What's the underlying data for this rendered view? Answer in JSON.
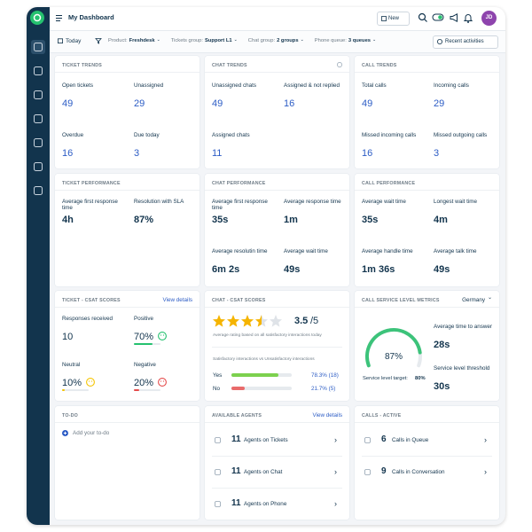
{
  "header": {
    "title": "My Dashboard",
    "new_button": "New",
    "avatar": "JD"
  },
  "filters": {
    "today": "Today",
    "product_label": "Product:",
    "product": "Freshdesk",
    "tickets_group_label": "Tickets group:",
    "tickets_group": "Support L1",
    "chat_group_label": "Chat group:",
    "chat_group": "2 groups",
    "phone_queue_label": "Phone queue:",
    "phone_queue": "3 queues",
    "recent": "Recent activities"
  },
  "cards": [
    {
      "title": "TICKET TRENDS",
      "metrics": [
        {
          "label": "Open tickets",
          "value": 49
        },
        {
          "label": "Unassigned",
          "value": 29
        },
        {
          "label": "Overdue",
          "value": 16
        },
        {
          "label": "Due today",
          "value": 3
        }
      ]
    },
    {
      "title": "CHAT TRENDS",
      "metrics": [
        {
          "label": "Unassigned chats",
          "value": 49
        },
        {
          "label": "Assigned & not replied",
          "value": 16
        },
        {
          "label": "Assigned chats",
          "value": 11
        }
      ]
    },
    {
      "title": "CALL TRENDS",
      "metrics": [
        {
          "label": "Total calls",
          "value": 49
        },
        {
          "label": "Incoming calls",
          "value": 29
        },
        {
          "label": "Missed incoming calls",
          "value": 16
        },
        {
          "label": "Missed outgoing calls",
          "value": 3
        }
      ]
    },
    {
      "title": "TICKET PERFORMANCE",
      "metrics": [
        {
          "label": "Average first response time",
          "value": "4h"
        },
        {
          "label": "Resolution with SLA",
          "value": "87%"
        }
      ]
    },
    {
      "title": "CHAT PERFORMANCE",
      "metrics": [
        {
          "label": "Average first response time",
          "value": "35s"
        },
        {
          "label": "Average response time",
          "value": "1m"
        },
        {
          "label": "Average resolutin time",
          "value": "6m 2s"
        },
        {
          "label": "Average wait time",
          "value": "49s"
        }
      ]
    },
    {
      "title": "CALL PERFORMANCE",
      "metrics": [
        {
          "label": "Average wait time",
          "value": "35s"
        },
        {
          "label": "Longest wait time",
          "value": "4m"
        },
        {
          "label": "Average handle time",
          "value": "1m 36s"
        },
        {
          "label": "Average talk time",
          "value": "49s"
        }
      ]
    }
  ],
  "ticket_csat": {
    "title": "TICKET - CSAT SCORES",
    "action": "View details",
    "responses": {
      "label": "Responses received",
      "value": 10
    },
    "positive": {
      "label": "Positive",
      "value": 70,
      "value_label": "70%"
    },
    "neutral": {
      "label": "Neutral",
      "value": 10,
      "value_label": "10%"
    },
    "negative": {
      "label": "Negative",
      "value": 20,
      "value_label": "20%"
    }
  },
  "chat_csat": {
    "title": "CHAT - CSAT SCORES",
    "rating": 3.5,
    "rating_max": "/5",
    "rating_note": "Average rating based on all satisfactory interactions today",
    "comparison_title": "Satisfactory interactions vs Unsatisfactory interactions",
    "rows": [
      {
        "label": "Yes",
        "value": 78.3,
        "value_label": "78.3% (18)"
      },
      {
        "label": "No",
        "value": 21.7,
        "value_label": "21.7% (5)"
      }
    ]
  },
  "service_level": {
    "title": "CALL SERVICE LEVEL METRICS",
    "region": "Germany",
    "gauge": {
      "value": 87,
      "value_label": "87%"
    },
    "target_label": "Service level target:",
    "target": "80%",
    "avg_answer": {
      "label": "Average time to answer",
      "value": "28s"
    },
    "threshold": {
      "label": "Service level threshold",
      "value": "30s"
    }
  },
  "todo": {
    "title": "TO-DO",
    "add": "Add your to-do"
  },
  "agents": {
    "title": "AVAILABLE AGENTS",
    "action": "View details",
    "rows": [
      {
        "count": 11,
        "label": "Agents on Tickets"
      },
      {
        "count": 11,
        "label": "Agents on Chat"
      },
      {
        "count": 11,
        "label": "Agents on Phone"
      }
    ]
  },
  "calls_active": {
    "title": "CALLS - ACTIVE",
    "rows": [
      {
        "count": 6,
        "label": "Calls in Queue"
      },
      {
        "count": 9,
        "label": "Calls in Conversation"
      }
    ]
  }
}
